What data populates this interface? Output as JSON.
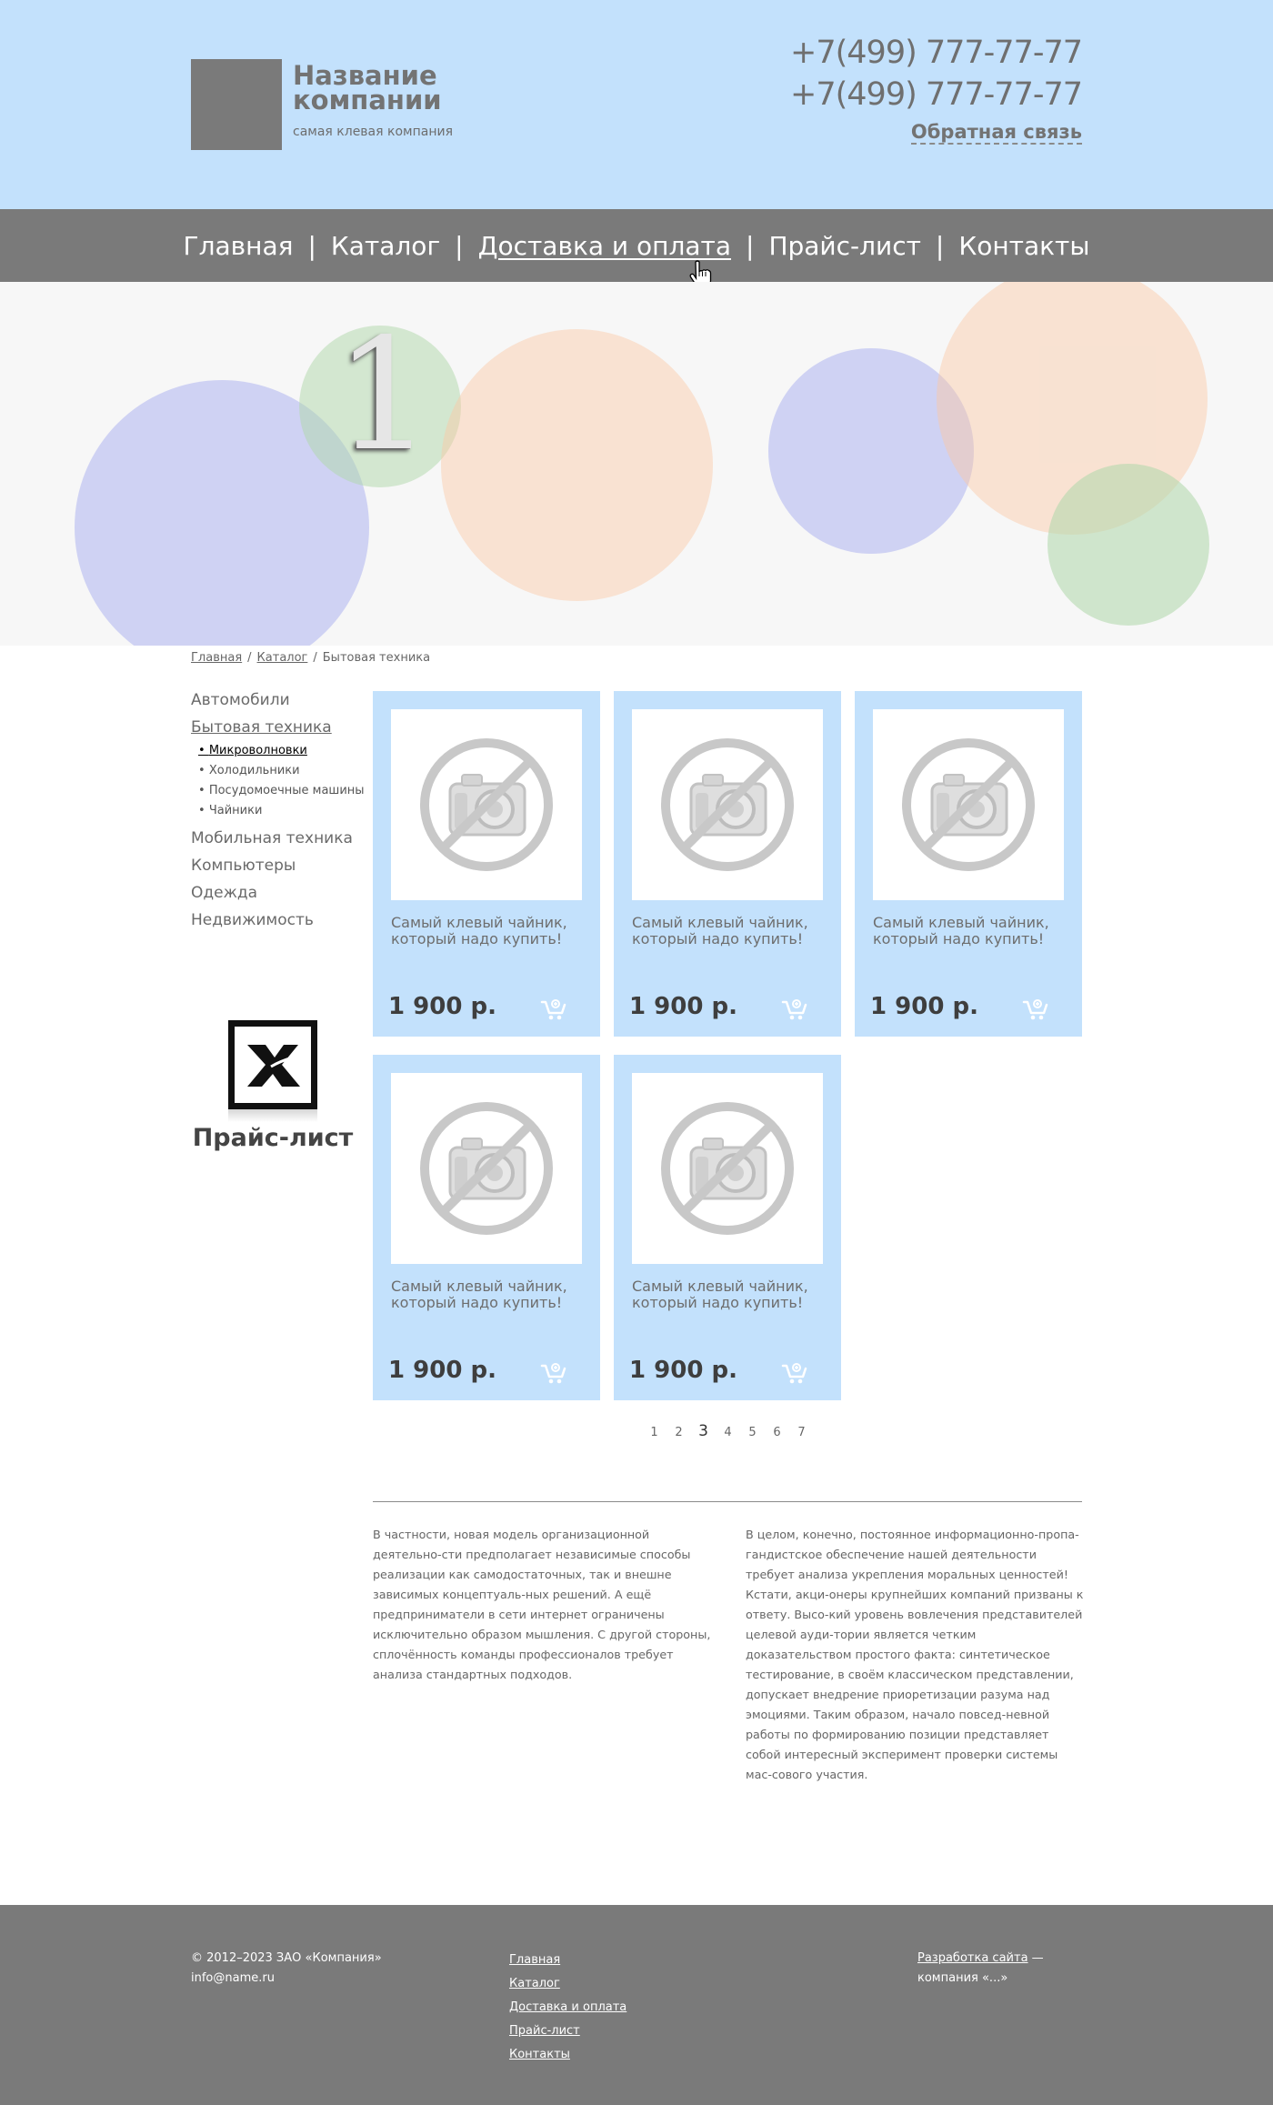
{
  "header": {
    "company_name": "Название компании",
    "company_slogan": "самая клевая компания",
    "phone1": "+7(499) 777-77-77",
    "phone2": "+7(499) 777-77-77",
    "feedback_label": "Обратная связь"
  },
  "nav": {
    "items": [
      "Главная",
      "Каталог",
      "Доставка и оплата",
      "Прайс-лист",
      "Контакты"
    ],
    "separator": "|",
    "active_index": 2
  },
  "banner": {
    "slide_number": "1"
  },
  "breadcrumb": {
    "items": [
      "Главная",
      "Каталог",
      "Бытовая техника"
    ],
    "separator": "/"
  },
  "sidebar": {
    "items": [
      "Автомобили",
      "Бытовая техника",
      "Мобильная техника",
      "Компьютеры",
      "Одежда",
      "Недвижимость"
    ],
    "active_index": 1,
    "sub_items": [
      "Микроволновки",
      "Холодильники",
      "Посудомоечные машины",
      "Чайники"
    ],
    "active_sub_index": 0,
    "pricelist_label": "Прайс-лист"
  },
  "products": [
    {
      "title": "Самый клевый чайник, который надо купить!",
      "price": "1 900 р."
    },
    {
      "title": "Самый клевый чайник, который надо купить!",
      "price": "1 900 р."
    },
    {
      "title": "Самый клевый чайник, который надо купить!",
      "price": "1 900 р."
    },
    {
      "title": "Самый клевый чайник, который надо купить!",
      "price": "1 900 р."
    },
    {
      "title": "Самый клевый чайник, который надо купить!",
      "price": "1 900 р."
    }
  ],
  "pagination": {
    "pages": [
      "1",
      "2",
      "3",
      "4",
      "5",
      "6",
      "7"
    ],
    "current": "3"
  },
  "text": {
    "left": "В частности, новая модель организационной деятельно-сти предполагает независимые способы реализации как самодостаточных, так и внешне зависимых концептуаль-ных решений. А ещё предприниматели в сети интернет ограничены исключительно образом мышления. С другой стороны, сплочённость команды профессионалов требует анализа стандартных подходов.",
    "right": "В целом, конечно, постоянное информационно-пропа-гандистское обеспечение нашей деятельности требует анализа укрепления моральных ценностей! Кстати, акци-онеры крупнейших компаний призваны к ответу. Высо-кий уровень вовлечения представителей целевой ауди-тории является четким доказательством простого факта: синтетическое тестирование, в своём классическом представлении, допускает внедрение приоретизации разума над эмоциями. Таким образом, начало повсед-невной работы по формированию позиции представляет собой интересный эксперимент проверки системы мас-сового участия."
  },
  "footer": {
    "copyright": "© 2012–2023 ЗАО «Компания»",
    "email": "info@name.ru",
    "links": [
      "Главная",
      "Каталог",
      "Доставка и оплата",
      "Прайс-лист",
      "Контакты"
    ],
    "dev_link": "Разработка сайта",
    "dev_suffix": " —",
    "dev_company": "компания «...»"
  },
  "colors": {
    "header_bg": "#c3e1fc",
    "nav_bg": "#7a7a7a",
    "card_bg": "#c3e1fc",
    "footer_bg": "#7a7a7a"
  },
  "icons": [
    "no-photo-icon",
    "cart-icon",
    "xls-icon",
    "hand-cursor-icon"
  ]
}
